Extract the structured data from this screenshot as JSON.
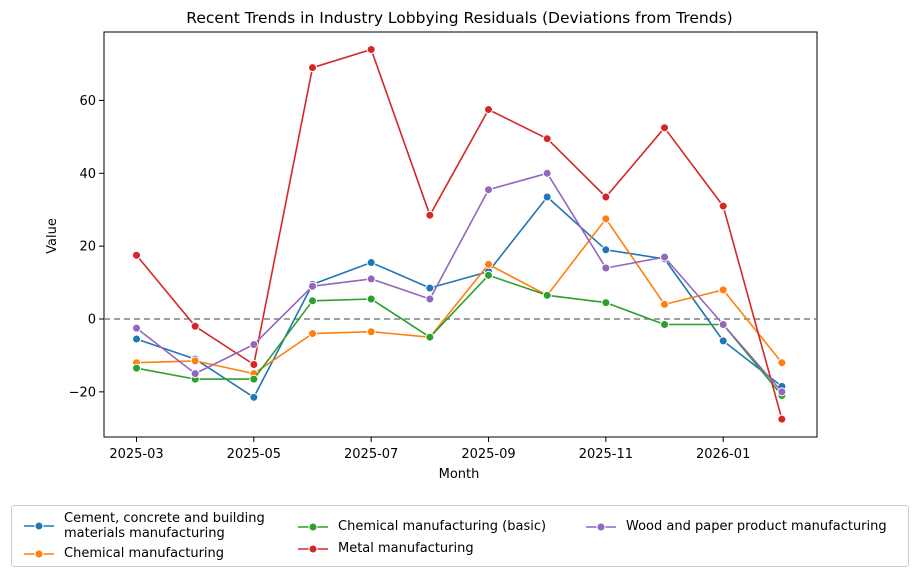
{
  "chart_data": {
    "type": "line",
    "title": "Recent Trends in Industry Lobbying Residuals (Deviations from Trends)",
    "xlabel": "Month",
    "ylabel": "Value",
    "ylim": [
      -32,
      80
    ],
    "x": [
      "2025-03",
      "2025-04",
      "2025-05",
      "2025-06",
      "2025-07",
      "2025-08",
      "2025-09",
      "2025-10",
      "2025-11",
      "2025-12",
      "2026-01",
      "2026-02"
    ],
    "xticks": [
      "2025-03",
      "2025-05",
      "2025-07",
      "2025-09",
      "2025-11",
      "2026-01"
    ],
    "yticks": [
      -20,
      0,
      20,
      40,
      60
    ],
    "reference_line": {
      "y": 0,
      "style": "dashed",
      "color": "#808080"
    },
    "grid": false,
    "legend_position": "bottom",
    "series": [
      {
        "name": "Cement, concrete and building materials manufacturing",
        "legend_lines": [
          "Cement, concrete and building",
          "materials manufacturing"
        ],
        "color": "#1f77b4",
        "values": [
          -5.5,
          -11,
          -21.5,
          9.5,
          15.5,
          8.5,
          13,
          33.5,
          19,
          16.5,
          -6,
          -18.5
        ]
      },
      {
        "name": "Chemical manufacturing",
        "legend_lines": [
          "Chemical manufacturing"
        ],
        "color": "#ff7f0e",
        "values": [
          -12,
          -11.5,
          -15,
          -4,
          -3.5,
          -5,
          15,
          6.5,
          27.5,
          4,
          8,
          -12
        ]
      },
      {
        "name": "Chemical manufacturing (basic)",
        "legend_lines": [
          "Chemical manufacturing (basic)"
        ],
        "color": "#2ca02c",
        "values": [
          -13.5,
          -16.5,
          -16.5,
          5,
          5.5,
          -5,
          12,
          6.5,
          4.5,
          -1.5,
          -1.5,
          -21
        ]
      },
      {
        "name": "Metal manufacturing",
        "legend_lines": [
          "Metal manufacturing"
        ],
        "color": "#d62728",
        "values": [
          17.5,
          -2,
          -12.5,
          69,
          74,
          28.5,
          57.5,
          49.5,
          33.5,
          52.5,
          31,
          -27.5
        ]
      },
      {
        "name": "Wood and paper product manufacturing",
        "legend_lines": [
          "Wood and paper product manufacturing"
        ],
        "color": "#9467bd",
        "values": [
          -2.5,
          -15,
          -7,
          9,
          11,
          5.5,
          35.5,
          40,
          14,
          17,
          -1.5,
          -20
        ]
      }
    ]
  }
}
